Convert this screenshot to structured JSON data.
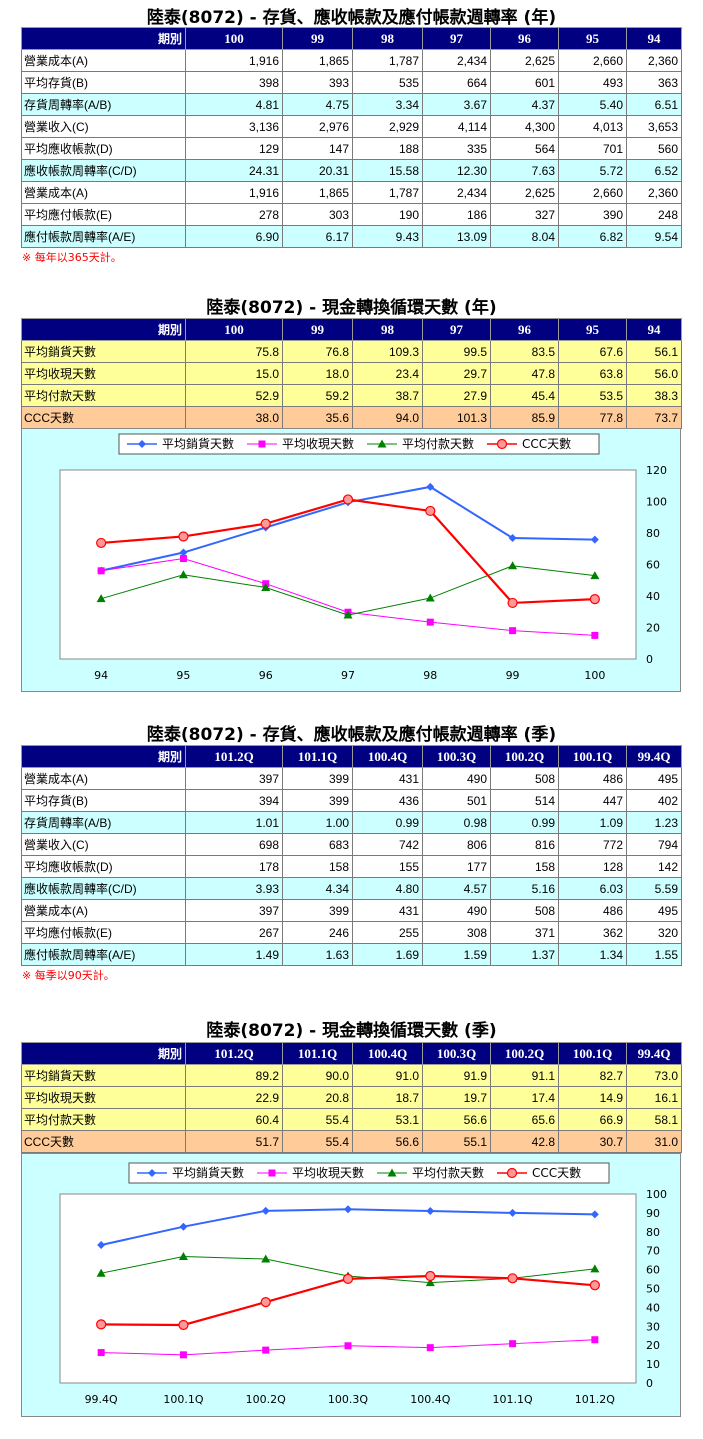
{
  "colors": {
    "header_bg": "#000080",
    "cyan_row": "#ccffff",
    "yellow_row": "#ffff99",
    "orange_row": "#ffcc99",
    "note": "#ff0000",
    "series": [
      "#3366ff",
      "#ff00ff",
      "#008000",
      "#ff0000"
    ]
  },
  "t1": {
    "title": "陸泰(8072) -  存貨、應收帳款及應付帳款週轉率 (年)",
    "header": [
      "期別",
      "100",
      "99",
      "98",
      "97",
      "96",
      "95",
      "94"
    ],
    "rows": [
      {
        "label": "營業成本(A)",
        "values": [
          "1,916",
          "1,865",
          "1,787",
          "2,434",
          "2,625",
          "2,660",
          "2,360"
        ]
      },
      {
        "label": "平均存貨(B)",
        "values": [
          "398",
          "393",
          "535",
          "664",
          "601",
          "493",
          "363"
        ]
      },
      {
        "label": "存貨周轉率(A/B)",
        "values": [
          "4.81",
          "4.75",
          "3.34",
          "3.67",
          "4.37",
          "5.40",
          "6.51"
        ]
      },
      {
        "label": "營業收入(C)",
        "values": [
          "3,136",
          "2,976",
          "2,929",
          "4,114",
          "4,300",
          "4,013",
          "3,653"
        ]
      },
      {
        "label": "平均應收帳款(D)",
        "values": [
          "129",
          "147",
          "188",
          "335",
          "564",
          "701",
          "560"
        ]
      },
      {
        "label": "應收帳款周轉率(C/D)",
        "values": [
          "24.31",
          "20.31",
          "15.58",
          "12.30",
          "7.63",
          "5.72",
          "6.52"
        ]
      },
      {
        "label": "營業成本(A)",
        "values": [
          "1,916",
          "1,865",
          "1,787",
          "2,434",
          "2,625",
          "2,660",
          "2,360"
        ]
      },
      {
        "label": "平均應付帳款(E)",
        "values": [
          "278",
          "303",
          "190",
          "186",
          "327",
          "390",
          "248"
        ]
      },
      {
        "label": "應付帳款周轉率(A/E)",
        "values": [
          "6.90",
          "6.17",
          "9.43",
          "13.09",
          "8.04",
          "6.82",
          "9.54"
        ]
      }
    ],
    "note": "※ 每年以365天計。"
  },
  "t2": {
    "title": "陸泰(8072) -  現金轉換循環天數 (年)",
    "header": [
      "期別",
      "100",
      "99",
      "98",
      "97",
      "96",
      "95",
      "94"
    ],
    "rows": [
      {
        "label": "平均銷貨天數",
        "values": [
          "75.8",
          "76.8",
          "109.3",
          "99.5",
          "83.5",
          "67.6",
          "56.1"
        ]
      },
      {
        "label": "平均收現天數",
        "values": [
          "15.0",
          "18.0",
          "23.4",
          "29.7",
          "47.8",
          "63.8",
          "56.0"
        ]
      },
      {
        "label": "平均付款天數",
        "values": [
          "52.9",
          "59.2",
          "38.7",
          "27.9",
          "45.4",
          "53.5",
          "38.3"
        ]
      },
      {
        "label": "CCC天數",
        "values": [
          "38.0",
          "35.6",
          "94.0",
          "101.3",
          "85.9",
          "77.8",
          "73.7"
        ]
      }
    ]
  },
  "t3": {
    "title": "陸泰(8072) -  存貨、應收帳款及應付帳款週轉率 (季)",
    "header": [
      "期別",
      "101.2Q",
      "101.1Q",
      "100.4Q",
      "100.3Q",
      "100.2Q",
      "100.1Q",
      "99.4Q"
    ],
    "rows": [
      {
        "label": "營業成本(A)",
        "values": [
          "397",
          "399",
          "431",
          "490",
          "508",
          "486",
          "495"
        ]
      },
      {
        "label": "平均存貨(B)",
        "values": [
          "394",
          "399",
          "436",
          "501",
          "514",
          "447",
          "402"
        ]
      },
      {
        "label": "存貨周轉率(A/B)",
        "values": [
          "1.01",
          "1.00",
          "0.99",
          "0.98",
          "0.99",
          "1.09",
          "1.23"
        ]
      },
      {
        "label": "營業收入(C)",
        "values": [
          "698",
          "683",
          "742",
          "806",
          "816",
          "772",
          "794"
        ]
      },
      {
        "label": "平均應收帳款(D)",
        "values": [
          "178",
          "158",
          "155",
          "177",
          "158",
          "128",
          "142"
        ]
      },
      {
        "label": "應收帳款周轉率(C/D)",
        "values": [
          "3.93",
          "4.34",
          "4.80",
          "4.57",
          "5.16",
          "6.03",
          "5.59"
        ]
      },
      {
        "label": "營業成本(A)",
        "values": [
          "397",
          "399",
          "431",
          "490",
          "508",
          "486",
          "495"
        ]
      },
      {
        "label": "平均應付帳款(E)",
        "values": [
          "267",
          "246",
          "255",
          "308",
          "371",
          "362",
          "320"
        ]
      },
      {
        "label": "應付帳款周轉率(A/E)",
        "values": [
          "1.49",
          "1.63",
          "1.69",
          "1.59",
          "1.37",
          "1.34",
          "1.55"
        ]
      }
    ],
    "note": "※ 每季以90天計。"
  },
  "t4": {
    "title": "陸泰(8072) -  現金轉換循環天數 (季)",
    "header": [
      "期別",
      "101.2Q",
      "101.1Q",
      "100.4Q",
      "100.3Q",
      "100.2Q",
      "100.1Q",
      "99.4Q"
    ],
    "rows": [
      {
        "label": "平均銷貨天數",
        "values": [
          "89.2",
          "90.0",
          "91.0",
          "91.9",
          "91.1",
          "82.7",
          "73.0"
        ]
      },
      {
        "label": "平均收現天數",
        "values": [
          "22.9",
          "20.8",
          "18.7",
          "19.7",
          "17.4",
          "14.9",
          "16.1"
        ]
      },
      {
        "label": "平均付款天數",
        "values": [
          "60.4",
          "55.4",
          "53.1",
          "56.6",
          "65.6",
          "66.9",
          "58.1"
        ]
      },
      {
        "label": "CCC天數",
        "values": [
          "51.7",
          "55.4",
          "56.6",
          "55.1",
          "42.8",
          "30.7",
          "31.0"
        ]
      }
    ]
  },
  "chart_data": [
    {
      "type": "line",
      "categories": [
        "94",
        "95",
        "96",
        "97",
        "98",
        "99",
        "100"
      ],
      "series": [
        {
          "name": "平均銷貨天數",
          "values": [
            56.1,
            67.6,
            83.5,
            99.5,
            109.3,
            76.8,
            75.8
          ]
        },
        {
          "name": "平均收現天數",
          "values": [
            56.0,
            63.8,
            47.8,
            29.7,
            23.4,
            18.0,
            15.0
          ]
        },
        {
          "name": "平均付款天數",
          "values": [
            38.3,
            53.5,
            45.4,
            27.9,
            38.7,
            59.2,
            52.9
          ]
        },
        {
          "name": "CCC天數",
          "values": [
            73.7,
            77.8,
            85.9,
            101.3,
            94.0,
            35.6,
            38.0
          ]
        }
      ],
      "ylim": [
        0,
        120
      ],
      "yticks": [
        "0",
        "20",
        "40",
        "60",
        "80",
        "100",
        "120"
      ],
      "legend": "top",
      "grid": false
    },
    {
      "type": "line",
      "categories": [
        "99.4Q",
        "100.1Q",
        "100.2Q",
        "100.3Q",
        "100.4Q",
        "101.1Q",
        "101.2Q"
      ],
      "series": [
        {
          "name": "平均銷貨天數",
          "values": [
            73.0,
            82.7,
            91.1,
            91.9,
            91.0,
            90.0,
            89.2
          ]
        },
        {
          "name": "平均收現天數",
          "values": [
            16.1,
            14.9,
            17.4,
            19.7,
            18.7,
            20.8,
            22.9
          ]
        },
        {
          "name": "平均付款天數",
          "values": [
            58.1,
            66.9,
            65.6,
            56.6,
            53.1,
            55.4,
            60.4
          ]
        },
        {
          "name": "CCC天數",
          "values": [
            31.0,
            30.7,
            42.8,
            55.1,
            56.6,
            55.4,
            51.7
          ]
        }
      ],
      "ylim": [
        0,
        100
      ],
      "yticks": [
        "0",
        "10",
        "20",
        "30",
        "40",
        "50",
        "60",
        "70",
        "80",
        "90",
        "100"
      ],
      "legend": "top",
      "grid": false
    }
  ]
}
